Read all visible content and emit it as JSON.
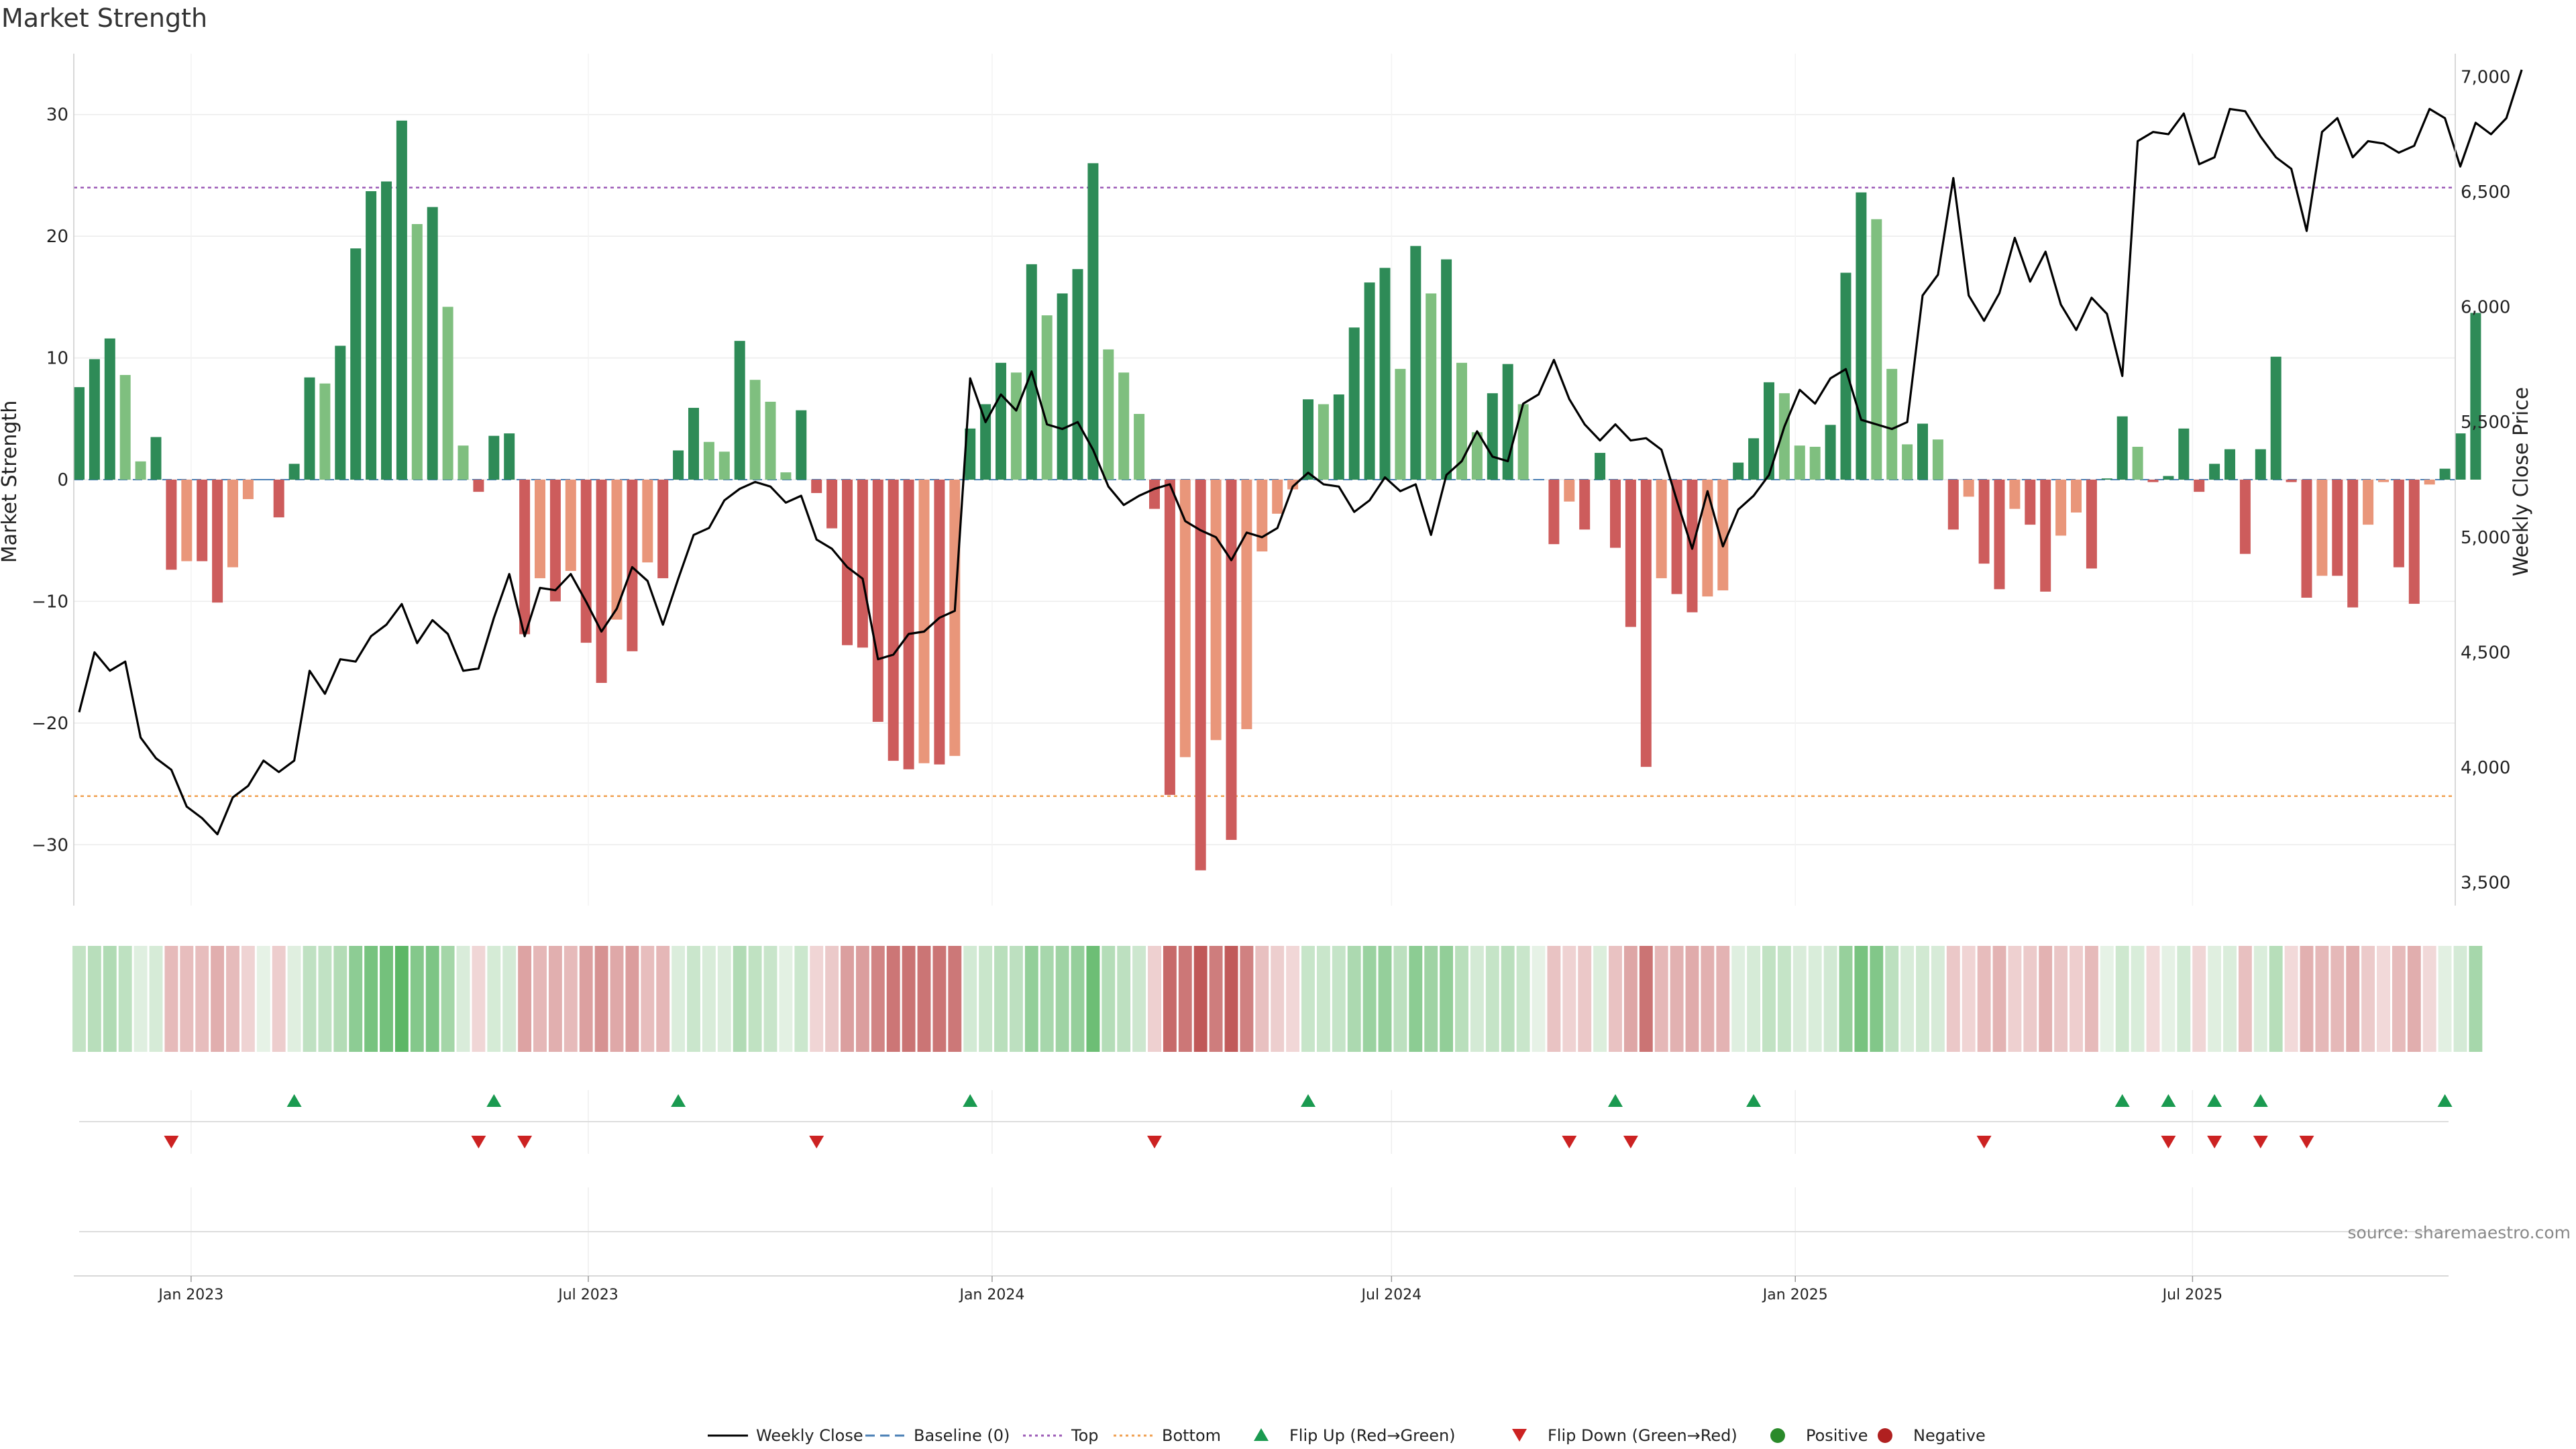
{
  "chart_data": {
    "type": "bar",
    "title": "Market Strength",
    "ylabel_left": "Market Strength",
    "ylabel_right": "Weekly Close Price",
    "source": "source: sharemaestro.com",
    "x_start_date": "2022-11-11",
    "week_interval_days": 7,
    "ylim_left": [
      -35,
      35
    ],
    "ylim_right": [
      3400,
      7100
    ],
    "yticks_left": [
      {
        "label": "30",
        "value": 30
      },
      {
        "label": "20",
        "value": 20
      },
      {
        "label": "10",
        "value": 10
      },
      {
        "label": "0",
        "value": 0
      },
      {
        "label": "−10",
        "value": -10
      },
      {
        "label": "−20",
        "value": -20
      },
      {
        "label": "−30",
        "value": -30
      }
    ],
    "yticks_right": [
      {
        "label": "7,000",
        "value": 7000
      },
      {
        "label": "6,500",
        "value": 6500
      },
      {
        "label": "6,000",
        "value": 6000
      },
      {
        "label": "5,500",
        "value": 5500
      },
      {
        "label": "5,000",
        "value": 5000
      },
      {
        "label": "4,500",
        "value": 4500
      },
      {
        "label": "4,000",
        "value": 4000
      },
      {
        "label": "3,500",
        "value": 3500
      }
    ],
    "xticks": [
      {
        "label": "Jan 2023",
        "date": "2023-01-01"
      },
      {
        "label": "Jul 2023",
        "date": "2023-07-01"
      },
      {
        "label": "Jan 2024",
        "date": "2024-01-01"
      },
      {
        "label": "Jul 2024",
        "date": "2024-07-01"
      },
      {
        "label": "Jan 2025",
        "date": "2025-01-01"
      },
      {
        "label": "Jul 2025",
        "date": "2025-07-01"
      }
    ],
    "top_line": 24,
    "bottom_line": -26,
    "grid": true,
    "legend_position": "bottom-center",
    "strength": [
      7.6,
      9.9,
      11.6,
      8.6,
      1.5,
      3.5,
      -7.4,
      -6.7,
      -6.7,
      -10.1,
      -7.2,
      -1.6,
      0,
      -3.1,
      1.3,
      8.4,
      7.9,
      11.0,
      19.0,
      23.7,
      24.5,
      29.5,
      21.0,
      22.4,
      14.2,
      2.8,
      -1.0,
      3.6,
      3.8,
      -12.7,
      -8.1,
      -10.0,
      -7.5,
      -13.4,
      -16.7,
      -11.5,
      -14.1,
      -6.8,
      -8.1,
      2.4,
      5.9,
      3.1,
      2.3,
      11.4,
      8.2,
      6.4,
      0.6,
      5.7,
      -1.1,
      -4.0,
      -13.6,
      -13.8,
      -19.9,
      -23.1,
      -23.8,
      -23.3,
      -23.4,
      -22.7,
      4.2,
      6.2,
      9.6,
      8.8,
      17.7,
      13.5,
      15.3,
      17.3,
      26.0,
      10.7,
      8.8,
      5.4,
      -2.4,
      -25.9,
      -22.8,
      -32.1,
      -21.4,
      -29.6,
      -20.5,
      -5.9,
      -2.8,
      -0.8,
      6.6,
      6.2,
      7.0,
      12.5,
      16.2,
      17.4,
      9.1,
      19.2,
      15.3,
      18.1,
      9.6,
      3.9,
      7.1,
      9.5,
      6.2,
      0,
      -5.3,
      -1.8,
      -4.1,
      2.2,
      -5.6,
      -12.1,
      -23.6,
      -8.1,
      -9.4,
      -10.9,
      -9.6,
      -9.1,
      1.4,
      3.4,
      8.0,
      7.1,
      2.8,
      2.7,
      4.5,
      17.0,
      23.6,
      21.4,
      9.1,
      2.9,
      4.6,
      3.3,
      -4.1,
      -1.4,
      -6.9,
      -9.0,
      -2.4,
      -3.7,
      -9.2,
      -4.6,
      -2.7,
      -7.3,
      0.1,
      5.2,
      2.7,
      -0.2,
      0.3,
      4.2,
      -1.0,
      1.3,
      2.5,
      -6.1,
      2.5,
      10.1,
      -0.2,
      -9.7,
      -7.9,
      -7.9,
      -10.5,
      -3.7,
      -0.2,
      -7.2,
      -10.2,
      -0.4,
      0.9,
      3.8,
      13.7
    ],
    "close": [
      4240,
      4500,
      4420,
      4460,
      4130,
      4040,
      3990,
      3830,
      3780,
      3710,
      3870,
      3920,
      4030,
      3980,
      4030,
      4420,
      4320,
      4470,
      4460,
      4570,
      4620,
      4710,
      4540,
      4640,
      4580,
      4420,
      4430,
      4650,
      4840,
      4570,
      4780,
      4770,
      4840,
      4720,
      4590,
      4690,
      4870,
      4810,
      4620,
      4820,
      5010,
      5040,
      5160,
      5210,
      5240,
      5220,
      5150,
      5180,
      4990,
      4950,
      4870,
      4820,
      4470,
      4490,
      4580,
      4590,
      4650,
      4680,
      5690,
      5500,
      5620,
      5550,
      5720,
      5490,
      5470,
      5500,
      5380,
      5220,
      5140,
      5180,
      5210,
      5230,
      5070,
      5030,
      5000,
      4900,
      5020,
      5000,
      5040,
      5220,
      5280,
      5230,
      5220,
      5110,
      5160,
      5260,
      5200,
      5230,
      5010,
      5270,
      5330,
      5460,
      5350,
      5330,
      5580,
      5620,
      5770,
      5600,
      5490,
      5420,
      5490,
      5420,
      5430,
      5380,
      5160,
      4950,
      5200,
      4960,
      5120,
      5180,
      5270,
      5480,
      5640,
      5580,
      5690,
      5730,
      5510,
      5490,
      5470,
      5500,
      6050,
      6140,
      6560,
      6050,
      5940,
      6060,
      6300,
      6110,
      6240,
      6010,
      5900,
      6040,
      5970,
      5700,
      6720,
      6760,
      6750,
      6840,
      6620,
      6650,
      6860,
      6850,
      6740,
      6650,
      6600,
      6330,
      6760,
      6820,
      6650,
      6720,
      6710,
      6670,
      6700,
      6860,
      6820,
      6610,
      6800,
      6750,
      6820,
      7030
    ],
    "heatmap_strength": [
      7.6,
      9.9,
      11.6,
      8.6,
      1.5,
      3.5,
      -7.4,
      -6.7,
      -6.7,
      -10.1,
      -7.2,
      -1.6,
      0,
      -3.1,
      1.3,
      8.4,
      7.9,
      11.0,
      19.0,
      23.7,
      24.5,
      29.5,
      21.0,
      22.4,
      14.2,
      2.8,
      -1.0,
      3.6,
      3.8,
      -12.7,
      -8.1,
      -10.0,
      -7.5,
      -13.4,
      -16.7,
      -11.5,
      -14.1,
      -6.8,
      -8.1,
      2.4,
      5.9,
      3.1,
      2.3,
      11.4,
      8.2,
      6.4,
      0.6,
      5.7,
      -1.1,
      -4.0,
      -13.6,
      -13.8,
      -19.9,
      -23.1,
      -23.8,
      -23.3,
      -23.4,
      -22.7,
      4.2,
      6.2,
      9.6,
      8.8,
      17.7,
      13.5,
      15.3,
      17.3,
      26.0,
      10.7,
      8.8,
      5.4,
      -2.4,
      -25.9,
      -22.8,
      -32.1,
      -21.4,
      -29.6,
      -20.5,
      -5.9,
      -2.8,
      -0.8,
      6.6,
      6.2,
      7.0,
      12.5,
      16.2,
      17.4,
      9.1,
      19.2,
      15.3,
      18.1,
      9.6,
      3.9,
      7.1,
      9.5,
      6.2,
      0,
      -5.3,
      -1.8,
      -4.1,
      2.2,
      -5.6,
      -12.1,
      -23.6,
      -8.1,
      -9.4,
      -10.9,
      -9.6,
      -9.1,
      1.4,
      3.4,
      8.0,
      7.1,
      2.8,
      2.7,
      4.5,
      17.0,
      23.6,
      21.4,
      9.1,
      2.9,
      4.6,
      3.3,
      -4.1,
      -1.4,
      -6.9,
      -9.0,
      -2.4,
      -3.7,
      -9.2,
      -4.6,
      -2.7,
      -7.3,
      0.1,
      5.2,
      2.7,
      -0.2,
      0.3,
      4.2,
      -1.0,
      1.3,
      2.5,
      -6.1,
      2.5,
      10.1,
      -0.2,
      -9.7,
      -7.9,
      -7.9,
      -10.5,
      -3.7,
      -0.2,
      -7.2,
      -10.2,
      -0.4,
      0.9,
      3.8,
      13.7
    ],
    "flip_up_weeks": [
      14,
      27,
      39,
      58,
      80,
      100,
      109,
      133,
      136,
      139,
      142,
      154
    ],
    "flip_down_weeks": [
      6,
      26,
      29,
      48,
      70,
      97,
      101,
      124,
      136,
      139,
      142,
      145
    ],
    "colors": {
      "strong_pos": "#2e8b57",
      "weak_pos": "#7fbf7f",
      "strong_neg": "#cd5c5c",
      "weak_neg": "#e9967a",
      "line": "#000000",
      "top": "#9b59b6",
      "bottom": "#f0a050",
      "baseline": "#4a7fb5",
      "flip_up": "#1a9a50",
      "flip_down": "#cc2222",
      "positive": "#2a8a2a",
      "negative": "#b02020"
    },
    "legend": [
      {
        "label": "Weekly Close",
        "kind": "line",
        "color": "#000000"
      },
      {
        "label": "Baseline (0)",
        "kind": "dash",
        "color": "#4a7fb5"
      },
      {
        "label": "Top",
        "kind": "dot",
        "color": "#9b59b6"
      },
      {
        "label": "Bottom",
        "kind": "dot",
        "color": "#f0a050"
      },
      {
        "label": "Flip Up (Red→Green)",
        "kind": "tri-up",
        "color": "#1a9a50"
      },
      {
        "label": "Flip Down (Green→Red)",
        "kind": "tri-down",
        "color": "#cc2222"
      },
      {
        "label": "Positive",
        "kind": "circle",
        "color": "#2a8a2a"
      },
      {
        "label": "Negative",
        "kind": "circle",
        "color": "#b02020"
      }
    ]
  }
}
